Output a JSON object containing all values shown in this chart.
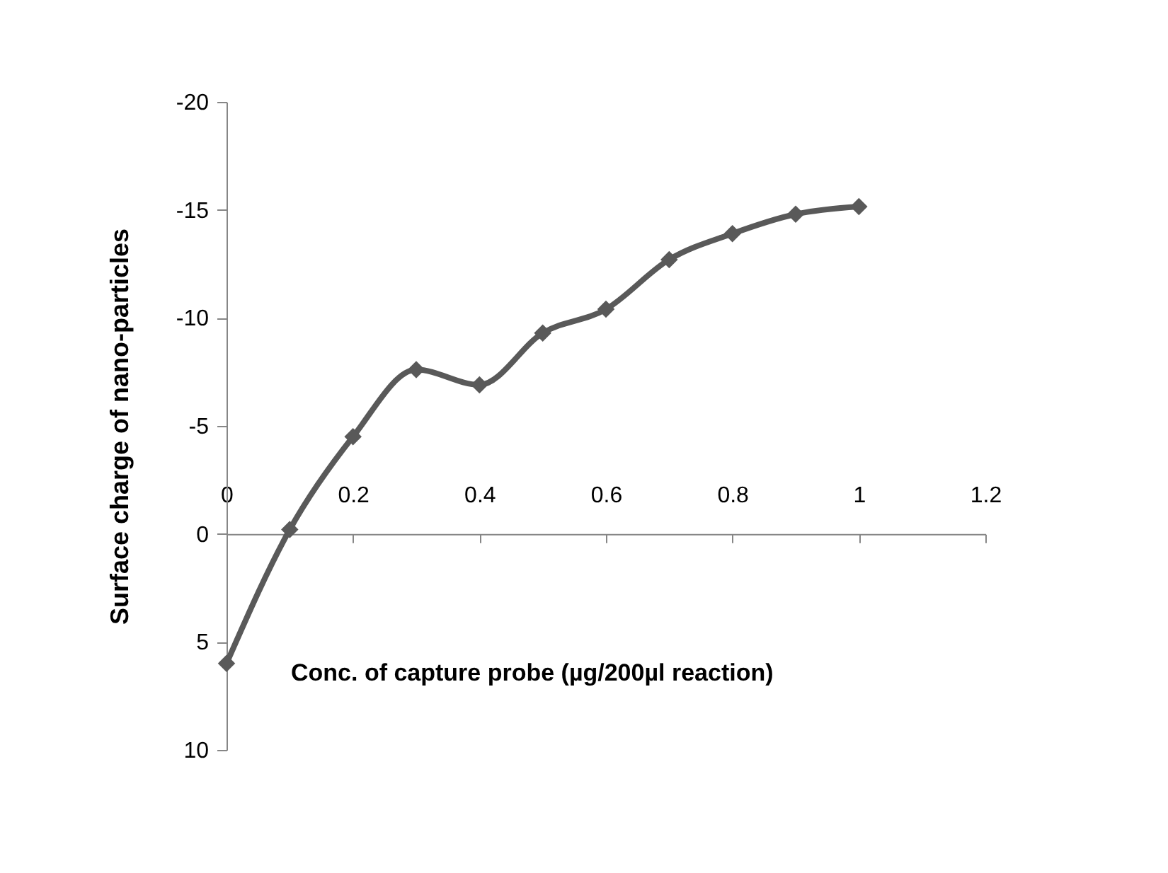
{
  "chart_data": {
    "type": "line",
    "xlabel": "Conc. of capture probe (µg/200µl reaction)",
    "ylabel": "Surface charge of nano-particles",
    "x": [
      0,
      0.1,
      0.2,
      0.3,
      0.4,
      0.5,
      0.6,
      0.7,
      0.8,
      0.9,
      1.0
    ],
    "series": [
      {
        "color": "#595959",
        "values": [
          6.0,
          -0.2,
          -4.5,
          -7.6,
          -6.9,
          -9.3,
          -10.4,
          -12.7,
          -13.9,
          -14.8,
          -15.15
        ]
      }
    ],
    "xlim": [
      0,
      1.2
    ],
    "xticks": [
      0,
      0.2,
      0.4,
      0.6,
      0.8,
      1,
      1.2
    ],
    "ylim": [
      10,
      -20
    ],
    "yticks": [
      10,
      5,
      0,
      -5,
      -10,
      -15,
      -20
    ],
    "grid": false,
    "marker": "diamond",
    "line_style": "solid"
  }
}
